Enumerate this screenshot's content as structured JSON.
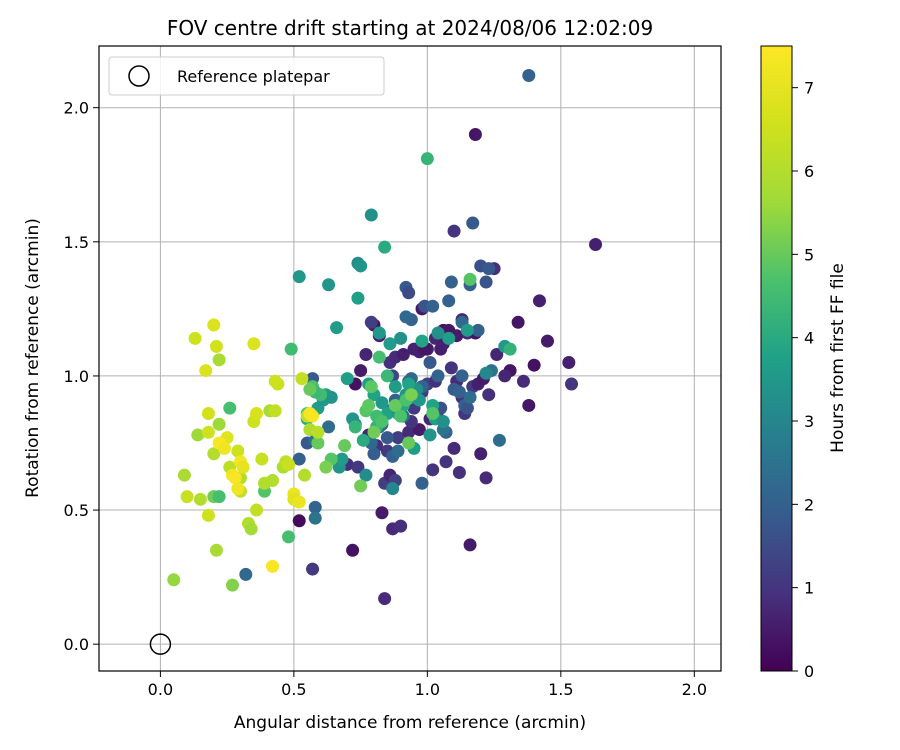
{
  "chart_data": {
    "type": "scatter",
    "title": "FOV centre drift starting at 2024/08/06 12:02:09",
    "xlabel": "Angular distance from reference (arcmin)",
    "ylabel": "Rotation from reference (arcmin)",
    "xlim": [
      -0.23,
      2.1
    ],
    "ylim": [
      -0.1,
      2.23
    ],
    "xticks": [
      0.0,
      0.5,
      1.0,
      1.5,
      2.0
    ],
    "yticks": [
      0.0,
      0.5,
      1.0,
      1.5,
      2.0
    ],
    "xtick_labels": [
      "0.0",
      "0.5",
      "1.0",
      "1.5",
      "2.0"
    ],
    "ytick_labels": [
      "0.0",
      "0.5",
      "1.0",
      "1.5",
      "2.0"
    ],
    "grid": true,
    "legend": {
      "placement": "top-left",
      "entries": [
        "Reference platepar"
      ]
    },
    "reference_point": {
      "x": 0.0,
      "y": 0.0
    },
    "colorbar": {
      "label": "Hours from first FF file",
      "colormap": "viridis",
      "range": [
        0,
        7.5
      ],
      "ticks": [
        0,
        1,
        2,
        3,
        4,
        5,
        6,
        7
      ],
      "tick_labels": [
        "0",
        "1",
        "2",
        "3",
        "4",
        "5",
        "6",
        "7"
      ]
    },
    "series": [
      {
        "x": [
          1.38,
          1.18,
          1.63,
          1.1,
          1.25,
          1.53,
          1.54,
          1.16,
          0.84,
          0.72,
          0.52,
          0.57,
          1.42,
          1.13,
          1.45,
          1.34,
          1.36,
          1.38,
          1.2,
          1.22,
          1.12,
          0.83,
          0.87,
          0.9,
          1.02,
          1.07,
          1.1,
          1.14,
          0.97,
          1.0,
          1.05,
          1.15,
          1.18,
          0.8,
          0.82,
          0.77,
          0.73,
          0.75,
          0.86,
          0.88,
          0.91,
          0.95,
          0.99,
          1.03,
          1.06,
          1.08,
          1.11,
          0.78,
          0.81,
          0.85,
          0.89,
          0.93,
          0.97,
          1.01,
          1.04,
          1.17,
          1.19,
          1.21,
          1.23,
          1.26,
          1.31,
          1.29,
          1.4,
          0.7,
          0.74,
          0.94,
          0.96,
          0.98,
          1.0,
          1.03,
          1.09,
          0.84,
          0.86,
          0.88,
          1.13,
          0.95,
          0.87,
          0.79,
          0.98,
          1.06,
          1.11
        ],
        "y": [
          2.12,
          1.9,
          1.49,
          1.54,
          1.4,
          1.05,
          0.97,
          0.37,
          0.17,
          0.35,
          0.46,
          0.28,
          1.28,
          1.21,
          1.13,
          1.2,
          0.98,
          0.89,
          0.71,
          0.62,
          0.64,
          0.49,
          0.43,
          0.44,
          0.65,
          0.68,
          0.73,
          0.86,
          1.09,
          1.1,
          1.1,
          1.16,
          1.16,
          1.19,
          1.15,
          1.08,
          0.97,
          1.02,
          1.05,
          1.07,
          1.08,
          1.1,
          1.1,
          1.14,
          1.17,
          1.17,
          1.15,
          0.78,
          0.74,
          0.72,
          0.77,
          0.79,
          0.8,
          0.84,
          0.87,
          0.96,
          0.97,
          0.99,
          0.93,
          1.08,
          1.02,
          1.0,
          1.04,
          0.67,
          0.66,
          0.83,
          0.91,
          0.94,
          0.97,
          0.98,
          1.03,
          0.6,
          0.63,
          0.61,
          0.92,
          0.88,
          1.0,
          1.2,
          1.25,
          1.12,
          0.98
        ],
        "hours": [
          2.0,
          0.4,
          0.6,
          1.0,
          0.9,
          0.6,
          1.0,
          0.5,
          0.8,
          0.3,
          0.2,
          1.1,
          0.6,
          0.7,
          0.5,
          0.4,
          0.8,
          0.4,
          0.6,
          0.8,
          0.9,
          0.5,
          0.8,
          0.9,
          1.0,
          1.0,
          0.8,
          1.0,
          0.6,
          0.5,
          0.6,
          0.8,
          0.4,
          0.3,
          0.6,
          0.7,
          0.3,
          0.5,
          0.9,
          0.8,
          0.6,
          0.6,
          0.4,
          0.7,
          0.3,
          0.4,
          0.5,
          0.7,
          0.9,
          1.1,
          1.2,
          0.8,
          0.5,
          0.7,
          0.9,
          1.1,
          0.6,
          0.5,
          0.9,
          0.7,
          0.4,
          0.7,
          0.3,
          0.9,
          1.1,
          1.0,
          1.2,
          1.1,
          1.3,
          0.9,
          1.0,
          1.2,
          0.7,
          1.3,
          0.8,
          1.1,
          1.4,
          1.2,
          0.5,
          0.6,
          0.8
        ]
      },
      {
        "x": [
          1.17,
          1.2,
          1.23,
          1.09,
          1.16,
          1.22,
          1.19,
          1.13,
          1.27,
          0.92,
          0.93,
          0.94,
          0.99,
          1.02,
          0.92,
          1.08,
          1.14,
          0.57,
          0.58,
          0.87,
          0.85,
          0.8,
          0.83,
          0.88,
          0.9,
          0.96,
          1.01,
          1.1,
          1.12,
          0.94,
          0.98,
          0.91,
          1.07,
          1.05,
          1.15,
          0.82,
          0.89,
          0.95,
          1.04,
          1.16,
          0.79,
          0.86,
          0.32,
          0.52,
          0.55,
          0.58,
          0.63,
          0.98,
          1.06,
          1.24,
          1.13,
          0.93
        ],
        "y": [
          1.57,
          1.41,
          1.4,
          1.35,
          1.34,
          1.35,
          1.17,
          1.0,
          0.76,
          1.33,
          1.31,
          1.21,
          1.26,
          1.26,
          1.22,
          1.28,
          0.89,
          0.99,
          0.51,
          0.7,
          0.77,
          0.71,
          0.82,
          0.91,
          0.89,
          0.95,
          1.05,
          0.95,
          0.94,
          0.99,
          0.96,
          0.85,
          0.79,
          0.88,
          0.88,
          0.81,
          0.72,
          0.93,
          1.0,
          0.92,
          0.75,
          0.87,
          0.26,
          0.69,
          0.75,
          0.76,
          0.81,
          0.6,
          0.8,
          1.02,
          1.2,
          0.98
        ],
        "hours": [
          1.8,
          1.6,
          1.8,
          2.0,
          2.0,
          1.7,
          2.0,
          2.0,
          2.3,
          1.8,
          1.5,
          2.0,
          1.7,
          2.0,
          2.2,
          2.0,
          2.0,
          1.8,
          2.1,
          2.0,
          1.8,
          1.9,
          1.8,
          2.1,
          2.0,
          2.2,
          1.8,
          1.9,
          2.0,
          2.2,
          2.1,
          2.3,
          2.0,
          1.6,
          1.7,
          2.3,
          2.3,
          2.3,
          2.1,
          2.3,
          2.2,
          2.5,
          2.2,
          2.0,
          1.8,
          2.5,
          2.3,
          2.0,
          2.5,
          2.5,
          2.2,
          2.2
        ]
      },
      {
        "x": [
          1.0,
          0.79,
          0.84,
          0.74,
          0.75,
          0.52,
          0.63,
          0.66,
          0.74,
          0.82,
          0.86,
          0.9,
          0.98,
          1.04,
          1.08,
          1.15,
          1.16,
          1.29,
          1.31,
          0.7,
          0.72,
          0.78,
          0.8,
          0.83,
          0.88,
          0.92,
          0.94,
          0.96,
          1.02,
          0.55,
          0.59,
          0.61,
          0.62,
          0.64,
          0.67,
          0.68,
          0.73,
          0.76,
          0.81,
          0.85,
          0.89,
          0.91,
          0.58,
          0.77,
          0.87,
          0.95,
          1.01,
          1.03,
          1.06,
          0.97,
          0.93,
          1.22
        ],
        "y": [
          1.81,
          1.6,
          1.48,
          1.42,
          1.41,
          1.37,
          1.34,
          1.18,
          1.29,
          1.16,
          1.12,
          1.14,
          1.13,
          1.16,
          1.14,
          1.17,
          1.36,
          1.11,
          1.1,
          0.99,
          0.84,
          0.97,
          0.93,
          0.9,
          0.96,
          0.93,
          0.92,
          0.95,
          0.89,
          0.84,
          0.88,
          0.91,
          0.93,
          0.92,
          0.66,
          0.69,
          0.82,
          0.76,
          0.81,
          0.86,
          0.86,
          0.89,
          0.47,
          0.63,
          0.58,
          0.73,
          0.78,
          0.84,
          0.83,
          0.91,
          0.97,
          1.01
        ],
        "hours": [
          4.3,
          3.3,
          4.0,
          3.2,
          3.4,
          3.5,
          3.4,
          3.6,
          3.7,
          3.5,
          3.6,
          3.3,
          3.8,
          3.3,
          3.7,
          3.6,
          4.8,
          3.5,
          4.2,
          3.7,
          3.4,
          3.6,
          3.8,
          3.5,
          3.6,
          3.4,
          3.7,
          3.3,
          3.8,
          3.9,
          3.6,
          3.5,
          3.7,
          3.4,
          3.4,
          3.6,
          3.3,
          4.0,
          4.2,
          3.8,
          3.5,
          3.9,
          2.5,
          3.2,
          3.0,
          3.6,
          3.4,
          3.7,
          3.3,
          3.5,
          3.8,
          3.0
        ]
      },
      {
        "x": [
          0.49,
          0.57,
          0.77,
          0.6,
          0.58,
          0.55,
          0.56,
          0.75,
          0.79,
          0.82,
          0.85,
          0.93,
          0.64,
          0.69,
          0.88,
          0.81,
          0.73,
          0.59,
          0.2,
          0.22,
          0.26,
          0.39,
          0.48,
          0.62,
          0.92,
          1.02,
          0.78,
          0.8,
          0.83,
          0.9,
          0.94
        ],
        "y": [
          1.1,
          0.96,
          0.87,
          0.93,
          0.94,
          0.86,
          0.95,
          0.59,
          0.96,
          1.07,
          1.0,
          0.75,
          0.69,
          0.74,
          0.89,
          0.85,
          0.81,
          0.75,
          0.55,
          0.55,
          0.88,
          0.57,
          0.4,
          0.66,
          0.91,
          0.86,
          0.89,
          0.79,
          0.83,
          0.85,
          0.93
        ],
        "hours": [
          4.5,
          4.7,
          4.8,
          4.5,
          4.4,
          4.7,
          5.0,
          5.1,
          4.9,
          4.6,
          4.4,
          5.0,
          4.8,
          5.0,
          5.0,
          4.5,
          4.3,
          5.0,
          5.1,
          4.6,
          4.6,
          4.8,
          4.6,
          5.2,
          4.7,
          4.8,
          4.9,
          5.1,
          4.7,
          4.7,
          5.2
        ]
      },
      {
        "x": [
          0.09,
          0.1,
          0.15,
          0.18,
          0.2,
          0.22,
          0.26,
          0.29,
          0.3,
          0.33,
          0.35,
          0.36,
          0.38,
          0.41,
          0.43,
          0.44,
          0.46,
          0.47,
          0.53,
          0.54,
          0.56,
          0.59,
          0.14,
          0.05,
          0.21,
          0.27,
          0.3,
          0.34,
          0.39,
          0.42,
          0.55,
          0.48
        ],
        "y": [
          0.63,
          0.55,
          0.54,
          0.48,
          0.71,
          0.82,
          0.66,
          0.72,
          0.57,
          0.45,
          0.83,
          0.5,
          0.69,
          0.87,
          0.87,
          0.97,
          0.66,
          0.68,
          0.99,
          0.63,
          0.8,
          0.79,
          0.78,
          0.24,
          0.35,
          0.22,
          0.62,
          0.43,
          0.6,
          0.61,
          0.85,
          0.67
        ],
        "hours": [
          5.8,
          6.4,
          6.0,
          6.5,
          6.0,
          5.6,
          6.2,
          6.5,
          6.3,
          6.0,
          6.5,
          6.3,
          6.4,
          5.8,
          6.3,
          6.4,
          5.9,
          6.2,
          6.3,
          6.0,
          5.9,
          6.1,
          5.6,
          5.5,
          5.8,
          5.3,
          6.0,
          5.7,
          6.0,
          6.0,
          6.3,
          6.4
        ]
      },
      {
        "x": [
          0.13,
          0.2,
          0.21,
          0.22,
          0.17,
          0.18,
          0.18,
          0.35,
          0.25,
          0.36,
          0.43,
          0.5,
          0.5,
          0.52,
          0.56,
          0.27,
          0.28,
          0.3,
          0.31,
          0.22,
          0.24,
          0.29,
          0.57,
          0.42
        ],
        "y": [
          1.14,
          1.19,
          1.11,
          1.06,
          1.02,
          0.86,
          0.79,
          1.12,
          0.77,
          0.86,
          0.98,
          0.56,
          0.54,
          0.53,
          0.86,
          0.63,
          0.62,
          0.68,
          0.66,
          0.75,
          0.73,
          0.58,
          0.85,
          0.29
        ],
        "hours": [
          6.5,
          6.8,
          6.6,
          5.8,
          6.8,
          6.6,
          6.5,
          6.8,
          6.9,
          6.7,
          6.5,
          7.1,
          6.9,
          7.1,
          7.3,
          7.2,
          7.4,
          7.3,
          7.0,
          7.4,
          7.2,
          7.2,
          7.4,
          7.4
        ]
      }
    ]
  }
}
